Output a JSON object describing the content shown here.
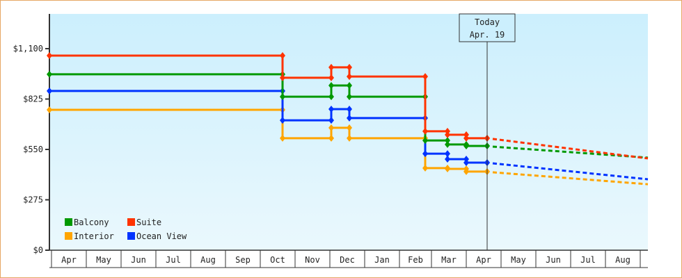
{
  "chart_data": {
    "type": "line",
    "title": "",
    "xlabel": "",
    "ylabel": "",
    "ylim": [
      0,
      1100
    ],
    "yticks": [
      "$0",
      "$275",
      "$550",
      "$825",
      "$1,100"
    ],
    "ytick_values": [
      0,
      275,
      550,
      825,
      1100
    ],
    "x_months": [
      "Apr",
      "May",
      "Jun",
      "Jul",
      "Aug",
      "Sep",
      "Oct",
      "Nov",
      "Dec",
      "Jan",
      "Feb",
      "Mar",
      "Apr",
      "May",
      "Jun",
      "Jul",
      "Aug"
    ],
    "grid": false,
    "legend_position": "lower-left",
    "annotation": {
      "label_line1": "Today",
      "label_line2": "Apr. 19"
    },
    "step_points_x": [
      "Apr start",
      "Oct (early)",
      "Nov (late)",
      "Dec (early)",
      "Feb (early)",
      "Mar (early)",
      "Mar (late)",
      "Apr 19 (today)"
    ],
    "series": [
      {
        "name": "Suite",
        "color": "#ff3300",
        "values": [
          1062,
          941,
          998,
          948,
          649,
          630,
          611,
          611
        ],
        "forecast_end": 501
      },
      {
        "name": "Balcony",
        "color": "#009900",
        "values": [
          960,
          838,
          899,
          838,
          599,
          577,
          569,
          569
        ],
        "forecast_end": 505
      },
      {
        "name": "Ocean View",
        "color": "#0033ff",
        "values": [
          869,
          709,
          770,
          721,
          527,
          497,
          478,
          478
        ],
        "forecast_end": 387
      },
      {
        "name": "Interior",
        "color": "#ffa500",
        "values": [
          766,
          611,
          668,
          611,
          448,
          444,
          429,
          429
        ],
        "forecast_end": 360
      }
    ]
  },
  "legend": {
    "items": [
      {
        "label": "Balcony",
        "color": "#009900"
      },
      {
        "label": "Suite",
        "color": "#ff3300"
      },
      {
        "label": "Interior",
        "color": "#ffa500"
      },
      {
        "label": "Ocean View",
        "color": "#0033ff"
      }
    ]
  },
  "today_box": {
    "line1": "Today",
    "line2": "Apr. 19"
  }
}
